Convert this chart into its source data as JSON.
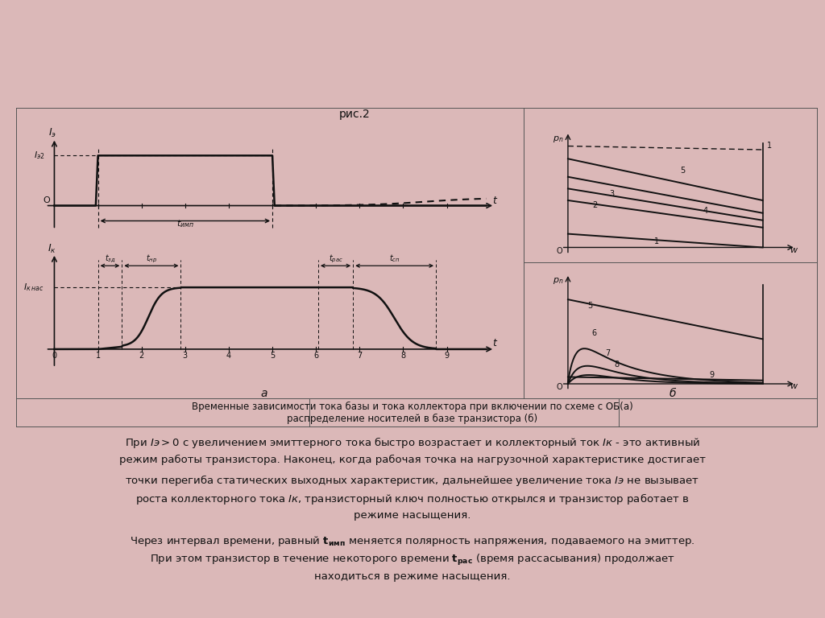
{
  "bg_color": "#dbb8b8",
  "fig_title": "рис.2",
  "caption_line1": "Временные зависимости тока базы и тока коллектора при включении по схеме с ОБ(а)",
  "caption_line2": "распределение носителей в базе транзистора (б)",
  "subplot_a_label": "а",
  "subplot_b_label": "б",
  "border_color": "#555555",
  "line_color": "#111111",
  "text_color": "#111111"
}
